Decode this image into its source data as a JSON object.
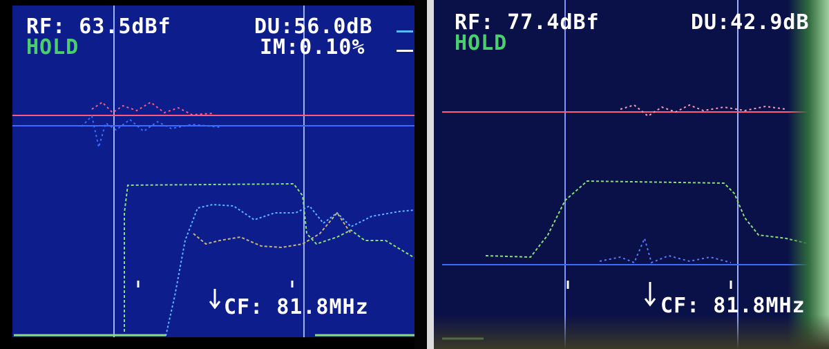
{
  "left_screen": {
    "rf_readout": "RF: 63.5dBf",
    "mode": "HOLD",
    "du_readout": "DU:56.0dB",
    "im_readout": "IM:0.10%",
    "cf_readout": "CF: 81.8MHz"
  },
  "right_screen": {
    "rf_readout": "RF: 77.4dBf",
    "mode": "HOLD",
    "du_readout": "DU:42.9dB",
    "cf_readout": "CF: 81.8MHz"
  },
  "colors": {
    "screen_bg": "#0d1e8c",
    "text": "#ffffff",
    "hold": "#49d06c",
    "trace_red": "#ff5a7a",
    "trace_blue": "#3b6bff",
    "trace_green": "#8be07a",
    "trace_cyan": "#5ab8ff"
  }
}
